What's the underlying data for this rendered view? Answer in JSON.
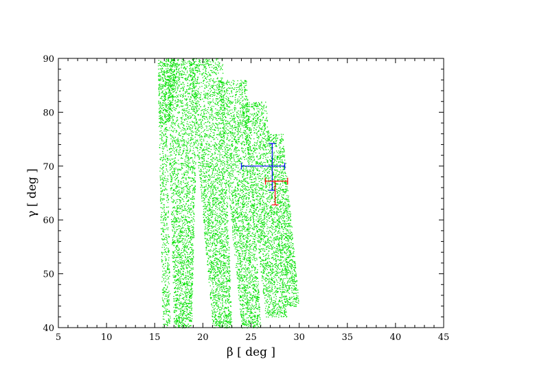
{
  "chart_data": {
    "type": "scatter",
    "title": "",
    "xlabel": "β [ deg ]",
    "ylabel": "γ [ deg ]",
    "xlim": [
      5,
      45
    ],
    "ylim": [
      40,
      90
    ],
    "x_ticks": [
      5,
      10,
      15,
      20,
      25,
      30,
      35,
      40,
      45
    ],
    "y_ticks": [
      40,
      50,
      60,
      70,
      80,
      90
    ],
    "grid": false,
    "colors": {
      "scatter": "#00e000",
      "blue_errorbar": "#0000ff",
      "red_errorbar": "#ff0000"
    },
    "scatter_regions": [
      {
        "description_ref": "band-1",
        "upper": [
          [
            15.3,
            90
          ],
          [
            15.6,
            76
          ]
        ],
        "lower_end": [
          15.9,
          40
        ]
      },
      {
        "description_ref": "band-2",
        "x_top": [
          16.0,
          19.5
        ],
        "x_bottom": [
          17.0,
          18.6
        ]
      },
      {
        "description_ref": "band-3",
        "x_top": [
          19.0,
          23.0
        ],
        "x_bottom": [
          21.0,
          23.0
        ]
      },
      {
        "description_ref": "band-4",
        "x_top": [
          22.0,
          26.0
        ],
        "x_bottom": [
          24.0,
          26.0
        ]
      },
      {
        "description_ref": "band-5",
        "x_top": [
          25.0,
          28.5
        ],
        "x_bottom": [
          27.0,
          29.0
        ]
      },
      {
        "description_ref": "band-6",
        "x_top": [
          27.0,
          30.0
        ],
        "x_bottom": [
          28.0,
          30.0
        ]
      }
    ],
    "errorbars": [
      {
        "name": "",
        "color": "#0000ff",
        "x": 27.2,
        "y": 70.0,
        "xerr": [
          24.0,
          28.5
        ],
        "yerr": [
          65.5,
          74.2
        ]
      },
      {
        "name": "",
        "color": "#ff0000",
        "x": 27.5,
        "y": 67.2,
        "xerr": [
          26.5,
          28.8
        ],
        "yerr": [
          62.8,
          67.2
        ]
      }
    ]
  }
}
